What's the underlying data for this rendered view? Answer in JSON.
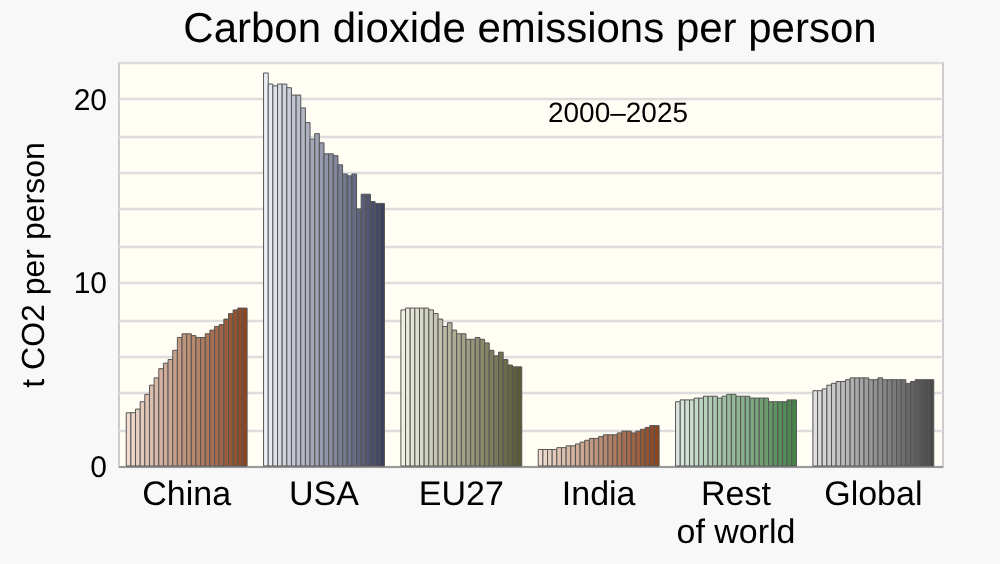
{
  "chart_data": {
    "type": "bar",
    "title": "Carbon dioxide emissions per person",
    "ylabel": "t CO2 per person",
    "annotations": [
      "2000–2025"
    ],
    "categories": [
      "China",
      "USA",
      "EU27",
      "India",
      "Rest\nof world",
      "Global"
    ],
    "ylim": [
      0,
      22
    ],
    "yticks": [
      0,
      {
        "value": 2,
        "label": null
      },
      {
        "value": 4,
        "label": null
      },
      {
        "value": 6,
        "label": null
      },
      {
        "value": 8,
        "label": null
      },
      10,
      {
        "value": 12,
        "label": null
      },
      {
        "value": 14,
        "label": null
      },
      {
        "value": 16,
        "label": null
      },
      {
        "value": 18,
        "label": null
      },
      20,
      {
        "value": 22,
        "label": null
      }
    ],
    "grid": true,
    "series": [
      {
        "values": [
          2.9,
          21.4,
          8.5,
          0.9,
          3.5,
          4.1
        ],
        "colors": [
          "#F0DCD0",
          "#ECF0F6",
          "#F0F0E4",
          "#F0DCD0",
          "#DCE8E0",
          "#E0E0E0"
        ]
      },
      {
        "values": [
          2.9,
          20.8,
          8.6,
          0.9,
          3.6,
          4.1
        ],
        "colors": [
          "#ECD6C9",
          "#E5E9F0",
          "#EAEADD",
          "#ECD6C9",
          "#D6E4DA",
          "#DADADA"
        ]
      },
      {
        "values": [
          3.1,
          20.7,
          8.6,
          0.9,
          3.6,
          4.2
        ],
        "colors": [
          "#E8D0C2",
          "#DEE2EA",
          "#E4E4D6",
          "#E8D0C2",
          "#D0E0D4",
          "#D4D4D4"
        ]
      },
      {
        "values": [
          3.5,
          20.8,
          8.6,
          0.9,
          3.6,
          4.4
        ],
        "colors": [
          "#E4CABB",
          "#D7DBE4",
          "#DEDECF",
          "#E4CABB",
          "#CADCCE",
          "#CECECE"
        ]
      },
      {
        "values": [
          3.9,
          20.8,
          8.6,
          1.0,
          3.7,
          4.5
        ],
        "colors": [
          "#E0C4B4",
          "#D0D4DE",
          "#D8D8C8",
          "#E0C4B4",
          "#C4D8C8",
          "#C8C8C8"
        ]
      },
      {
        "values": [
          4.4,
          20.6,
          8.6,
          1.0,
          3.7,
          4.6
        ],
        "colors": [
          "#DCBEAD",
          "#C9CDD8",
          "#D2D2C1",
          "#DCBEAD",
          "#BED4C2",
          "#C2C2C2"
        ]
      },
      {
        "values": [
          4.8,
          20.2,
          8.5,
          1.1,
          3.8,
          4.6
        ],
        "colors": [
          "#D8B8A6",
          "#C2C6D2",
          "#CCCCBA",
          "#D8B8A6",
          "#B8D0BC",
          "#BCBCBC"
        ]
      },
      {
        "values": [
          5.3,
          20.2,
          8.3,
          1.1,
          3.8,
          4.7
        ],
        "colors": [
          "#D4B29F",
          "#BBBFCC",
          "#C6C6B3",
          "#D4B29F",
          "#B2CCB6",
          "#B6B6B6"
        ]
      },
      {
        "values": [
          5.6,
          19.5,
          8.0,
          1.2,
          3.8,
          4.8
        ],
        "colors": [
          "#D0AC98",
          "#B4B8C6",
          "#C0C0AC",
          "#D0AC98",
          "#ACC8B0",
          "#B0B0B0"
        ]
      },
      {
        "values": [
          5.8,
          18.7,
          7.6,
          1.3,
          3.7,
          4.8
        ],
        "colors": [
          "#CCA691",
          "#ADB1C0",
          "#BABAA5",
          "#CCA691",
          "#A6C4AA",
          "#AAAAAA"
        ]
      },
      {
        "values": [
          6.3,
          17.8,
          7.8,
          1.4,
          3.8,
          4.8
        ],
        "colors": [
          "#C8A08A",
          "#A6AABA",
          "#B4B49E",
          "#C8A08A",
          "#A0C0A4",
          "#A4A4A4"
        ]
      },
      {
        "values": [
          7.0,
          18.1,
          7.4,
          1.5,
          3.9,
          4.8
        ],
        "colors": [
          "#C49A83",
          "#9FA3B4",
          "#AEAE97",
          "#C49A83",
          "#9ABC9E",
          "#9E9E9E"
        ]
      },
      {
        "values": [
          7.2,
          17.6,
          7.2,
          1.5,
          3.9,
          4.7
        ],
        "colors": [
          "#C0947C",
          "#989CAE",
          "#A8A890",
          "#C0947C",
          "#94B898",
          "#989898"
        ]
      },
      {
        "values": [
          7.2,
          17.0,
          7.2,
          1.6,
          3.8,
          4.7
        ],
        "colors": [
          "#BC8E75",
          "#9195A8",
          "#A2A289",
          "#BC8E75",
          "#8EB492",
          "#929292"
        ]
      },
      {
        "values": [
          7.1,
          17.0,
          6.9,
          1.7,
          3.8,
          4.8
        ],
        "colors": [
          "#B8886E",
          "#8A8EA2",
          "#9C9C82",
          "#B8886E",
          "#88B08C",
          "#8C8C8C"
        ]
      },
      {
        "values": [
          7.0,
          16.9,
          6.9,
          1.7,
          3.8,
          4.7
        ],
        "colors": [
          "#B48267",
          "#83879C",
          "#96967B",
          "#B48267",
          "#82AC86",
          "#868686"
        ]
      },
      {
        "values": [
          7.0,
          16.4,
          7.0,
          1.7,
          3.7,
          4.7
        ],
        "colors": [
          "#B07C60",
          "#7C8096",
          "#909074",
          "#B07C60",
          "#7CA880",
          "#808080"
        ]
      },
      {
        "values": [
          7.2,
          15.9,
          6.9,
          1.8,
          3.7,
          4.7
        ],
        "colors": [
          "#AC7659",
          "#757990",
          "#8A8A6D",
          "#AC7659",
          "#76A47A",
          "#7A7A7A"
        ]
      },
      {
        "values": [
          7.4,
          15.8,
          6.7,
          1.9,
          3.7,
          4.7
        ],
        "colors": [
          "#A87052",
          "#6E728A",
          "#848466",
          "#A87052",
          "#70A074",
          "#747474"
        ]
      },
      {
        "values": [
          7.6,
          15.9,
          6.3,
          1.9,
          3.7,
          4.7
        ],
        "colors": [
          "#A46A4B",
          "#676B84",
          "#7E7E5F",
          "#A46A4B",
          "#6A9C6E",
          "#6E6E6E"
        ]
      },
      {
        "values": [
          7.7,
          14.0,
          6.0,
          1.8,
          3.5,
          4.5
        ],
        "colors": [
          "#A06444",
          "#60647E",
          "#787858",
          "#A06444",
          "#649868",
          "#686868"
        ]
      },
      {
        "values": [
          8.0,
          14.8,
          6.2,
          1.9,
          3.5,
          4.6
        ],
        "colors": [
          "#9C5E3D",
          "#595D78",
          "#727251",
          "#9C5E3D",
          "#5E9462",
          "#626262"
        ]
      },
      {
        "values": [
          8.3,
          14.8,
          5.8,
          2.0,
          3.5,
          4.7
        ],
        "colors": [
          "#985836",
          "#525672",
          "#6C6C4A",
          "#985836",
          "#58905C",
          "#5C5C5C"
        ]
      },
      {
        "values": [
          8.5,
          14.4,
          5.5,
          2.1,
          3.5,
          4.7
        ],
        "colors": [
          "#94522F",
          "#4B4F6C",
          "#666643",
          "#94522F",
          "#528C56",
          "#565656"
        ]
      },
      {
        "values": [
          8.6,
          14.3,
          5.4,
          2.2,
          3.6,
          4.7
        ],
        "colors": [
          "#904C28",
          "#444866",
          "#60603C",
          "#904C28",
          "#4C8850",
          "#505050"
        ]
      },
      {
        "values": [
          8.6,
          14.3,
          5.4,
          2.2,
          3.6,
          4.7
        ],
        "colors": [
          "#8C4621",
          "#3D4160",
          "#5A5A35",
          "#8C4621",
          "#46844A",
          "#4A4A4A"
        ]
      }
    ]
  }
}
